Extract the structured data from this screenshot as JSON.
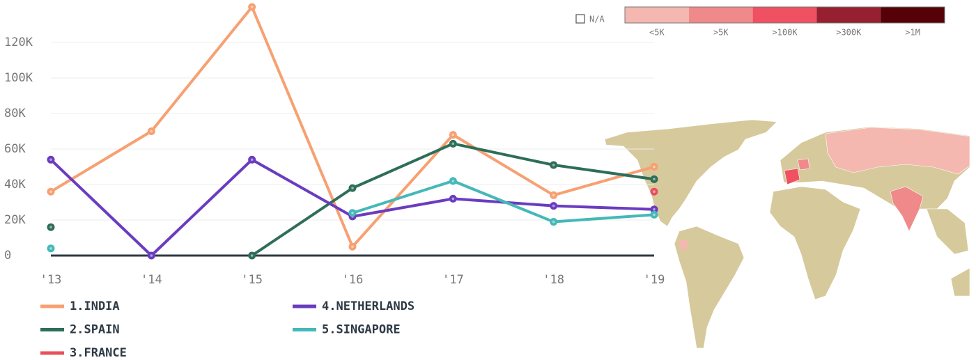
{
  "chart_data": {
    "type": "line",
    "categories": [
      "'13",
      "'14",
      "'15",
      "'16",
      "'17",
      "'18",
      "'19"
    ],
    "ylim": [
      0,
      140000
    ],
    "yticks": [
      {
        "value": 0,
        "label": "0"
      },
      {
        "value": 20000,
        "label": "20K"
      },
      {
        "value": 40000,
        "label": "40K"
      },
      {
        "value": 60000,
        "label": "60K"
      },
      {
        "value": 80000,
        "label": "80K"
      },
      {
        "value": 100000,
        "label": "100K"
      },
      {
        "value": 120000,
        "label": "120K"
      }
    ],
    "grid": true,
    "series": [
      {
        "name": "1.INDIA",
        "color": "#f7a072",
        "values": [
          36000,
          70000,
          140000,
          5000,
          68000,
          34000,
          50000
        ]
      },
      {
        "name": "2.SPAIN",
        "color": "#2e6e58",
        "values": [
          16000,
          null,
          0,
          38000,
          63000,
          51000,
          43000
        ]
      },
      {
        "name": "3.FRANCE",
        "color": "#e8505b",
        "values": [
          null,
          null,
          null,
          null,
          null,
          null,
          36000
        ]
      },
      {
        "name": "4.NETHERLANDS",
        "color": "#6a3cc0",
        "values": [
          54000,
          0,
          54000,
          22000,
          32000,
          28000,
          26000
        ]
      },
      {
        "name": "5.SINGAPORE",
        "color": "#45b8b8",
        "values": [
          4000,
          null,
          null,
          24000,
          42000,
          19000,
          23000
        ]
      }
    ],
    "color_scale": {
      "na_label": "N/A",
      "labels": [
        "<5K",
        ">5K",
        ">100K",
        ">300K",
        ">1M"
      ],
      "colors": [
        "#f4b8b0",
        "#f08a8a",
        "#ef5062",
        "#962030",
        "#560008"
      ]
    }
  }
}
